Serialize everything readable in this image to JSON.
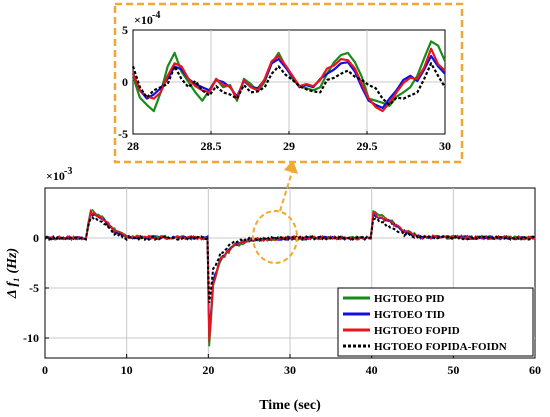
{
  "chart_data": [
    {
      "id": "main",
      "type": "line",
      "xlabel": "Time (sec)",
      "ylabel": "Δ f₁ (Hz)",
      "exponent_label": "×10",
      "exponent_power": "-3",
      "xlim": [
        0,
        60
      ],
      "ylim": [
        -12,
        5
      ],
      "xticks": [
        0,
        10,
        20,
        30,
        40,
        50,
        60
      ],
      "yticks": [
        -10,
        -5,
        0
      ],
      "grid": true,
      "legend_position": "bottom-right",
      "series": [
        {
          "name": "HGTOEO PID",
          "color": "#1a8a1a",
          "style": "solid",
          "points": [
            [
              0,
              0
            ],
            [
              5,
              0
            ],
            [
              5.6,
              2.8
            ],
            [
              7,
              2.1
            ],
            [
              8.5,
              0.8
            ],
            [
              10,
              0.1
            ],
            [
              19.9,
              0
            ],
            [
              20.1,
              -11
            ],
            [
              20.6,
              -4.8
            ],
            [
              21.5,
              -2.2
            ],
            [
              23,
              -0.9
            ],
            [
              25,
              -0.2
            ],
            [
              30,
              0
            ],
            [
              39.9,
              0
            ],
            [
              40.2,
              2.6
            ],
            [
              42,
              1.9
            ],
            [
              44,
              0.7
            ],
            [
              46,
              0.1
            ],
            [
              60,
              0
            ]
          ]
        },
        {
          "name": "HGTOEO TID",
          "color": "#1010dd",
          "style": "solid",
          "points": [
            [
              0,
              0
            ],
            [
              5,
              0
            ],
            [
              5.6,
              2.5
            ],
            [
              7,
              1.9
            ],
            [
              8.5,
              0.7
            ],
            [
              10,
              0.1
            ],
            [
              19.9,
              0
            ],
            [
              20.1,
              -9.6
            ],
            [
              20.6,
              -4.3
            ],
            [
              21.5,
              -2
            ],
            [
              23,
              -0.8
            ],
            [
              25,
              -0.2
            ],
            [
              30,
              0
            ],
            [
              39.9,
              0
            ],
            [
              40.2,
              2.3
            ],
            [
              42,
              1.7
            ],
            [
              44,
              0.6
            ],
            [
              46,
              0.1
            ],
            [
              60,
              0
            ]
          ]
        },
        {
          "name": "HGTOEO FOPID",
          "color": "#e8141e",
          "style": "solid",
          "points": [
            [
              0,
              0
            ],
            [
              5,
              0
            ],
            [
              5.6,
              2.6
            ],
            [
              7,
              2
            ],
            [
              8.5,
              0.8
            ],
            [
              10,
              0.1
            ],
            [
              19.9,
              0
            ],
            [
              20.1,
              -10.2
            ],
            [
              20.6,
              -4.5
            ],
            [
              21.5,
              -2.1
            ],
            [
              23,
              -0.8
            ],
            [
              25,
              -0.2
            ],
            [
              30,
              0
            ],
            [
              39.9,
              0
            ],
            [
              40.2,
              2.4
            ],
            [
              42,
              1.8
            ],
            [
              44,
              0.6
            ],
            [
              46,
              0.1
            ],
            [
              60,
              0
            ]
          ]
        },
        {
          "name": "HGTOEO FOPIDA-FOIDN",
          "color": "#000000",
          "style": "dotted",
          "points": [
            [
              0,
              0
            ],
            [
              5,
              0
            ],
            [
              5.6,
              2.2
            ],
            [
              7,
              1.5
            ],
            [
              8.5,
              0.5
            ],
            [
              10,
              0
            ],
            [
              19.9,
              0
            ],
            [
              20.1,
              -6.5
            ],
            [
              20.6,
              -3.2
            ],
            [
              21.5,
              -1.5
            ],
            [
              23,
              -0.5
            ],
            [
              25,
              -0.1
            ],
            [
              30,
              0
            ],
            [
              39.9,
              0
            ],
            [
              40.2,
              2
            ],
            [
              42,
              1.3
            ],
            [
              44,
              0.4
            ],
            [
              46,
              0
            ],
            [
              60,
              0
            ]
          ]
        }
      ]
    },
    {
      "id": "inset",
      "type": "line",
      "exponent_label": "×10",
      "exponent_power": "-4",
      "xlim": [
        28,
        30
      ],
      "ylim": [
        -5,
        5
      ],
      "xticks": [
        28,
        28.5,
        29,
        29.5,
        30
      ],
      "yticks": [
        -5,
        0,
        5
      ],
      "grid": true,
      "series": [
        {
          "name": "HGTOEO PID",
          "color": "#1a8a1a",
          "values": [
            0.5,
            -1.5,
            -2.2,
            -2.8,
            -1,
            1.5,
            2.8,
            1,
            0,
            -1,
            -1.8,
            -0.8,
            0.3,
            -0.5,
            -0.3,
            -1.8,
            0.3,
            -0.2,
            -0.9,
            0,
            1.8,
            2.8,
            1.5,
            0.3,
            -0.4,
            -0.6,
            -0.8,
            -0.5,
            0.8,
            1.9,
            2.6,
            2.8,
            1.9,
            0.5,
            -1.6,
            -1.8,
            -2,
            -2.3,
            -1.4,
            -1,
            -0.5,
            0.6,
            2.3,
            3.9,
            3.5,
            2
          ]
        },
        {
          "name": "HGTOEO TID",
          "color": "#1010dd",
          "values": [
            0.8,
            -0.8,
            -1.6,
            -1.2,
            -0.6,
            0.3,
            1.5,
            1.2,
            0.3,
            -0.2,
            -0.5,
            -0.8,
            0.2,
            0,
            -0.5,
            -1.4,
            0.1,
            -0.5,
            -0.6,
            0.2,
            1.8,
            2.2,
            1.4,
            0.5,
            -0.5,
            -0.3,
            -0.5,
            0.3,
            0.8,
            1.2,
            1.8,
            1.9,
            1,
            -0.5,
            -1.8,
            -2.2,
            -2.5,
            -1.6,
            -0.8,
            0.2,
            0.6,
            0.1,
            1.2,
            2.5,
            1.5,
            0.8
          ]
        },
        {
          "name": "HGTOEO FOPID",
          "color": "#e8141e",
          "values": [
            0.8,
            -0.8,
            -1.4,
            -1.6,
            -1,
            0.6,
            1.8,
            1.5,
            0.3,
            -0.4,
            -0.8,
            -1,
            0.3,
            -0.3,
            -0.4,
            -1.6,
            0.2,
            -0.5,
            -0.8,
            0.3,
            2,
            2.5,
            1.6,
            0.6,
            -0.4,
            -0.2,
            -0.4,
            0.2,
            1.3,
            1.6,
            2.2,
            2.1,
            1.3,
            -0.2,
            -1.6,
            -2.4,
            -2.8,
            -2,
            -1,
            -0.1,
            0.4,
            0.3,
            1.4,
            3.2,
            1.7,
            1.1
          ]
        },
        {
          "name": "HGTOEO FOPIDA-FOIDN",
          "color": "#000000",
          "values": [
            1.5,
            -0.5,
            -1.5,
            -0.8,
            -0.5,
            -0.2,
            1.5,
            0.3,
            -0.5,
            0.1,
            -0.8,
            -1.3,
            -0.4,
            -1,
            -1.2,
            -1.6,
            -0.3,
            -1,
            -0.9,
            -0.5,
            0.8,
            1.5,
            0.7,
            0.2,
            -0.4,
            -0.7,
            -0.9,
            -1,
            0.2,
            0.4,
            0.8,
            1.1,
            0.5,
            0.2,
            -0.3,
            -0.6,
            -1.6,
            -2.2,
            -1.5,
            -1.6,
            -1.3,
            -1,
            0.3,
            1.8,
            0.6,
            -0.5
          ]
        }
      ]
    }
  ],
  "colors": {
    "zoom_frame": "#f0a830",
    "grid": "#c8c8c8"
  }
}
